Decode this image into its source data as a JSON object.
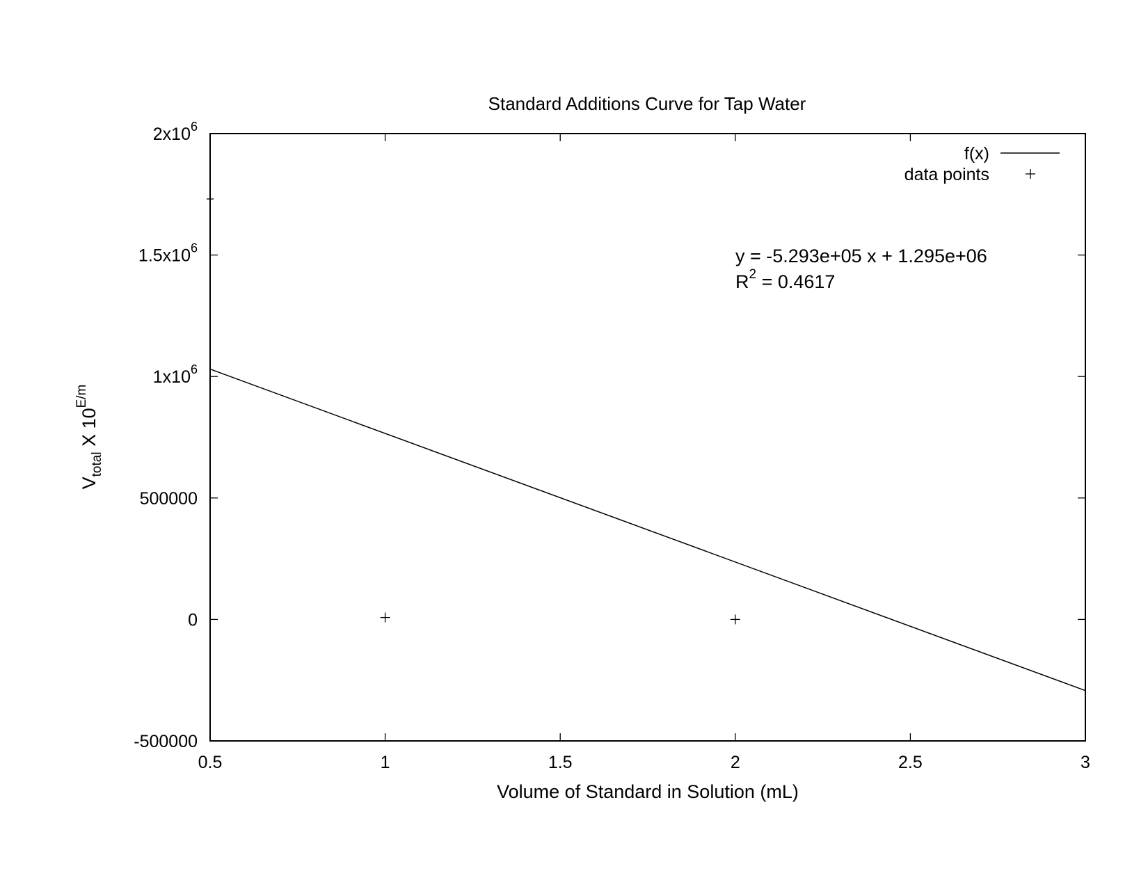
{
  "chart_data": {
    "type": "scatter",
    "title": "Standard Additions Curve for Tap Water",
    "xlabel": "Volume of Standard in Solution (mL)",
    "ylabel": {
      "base": "V",
      "subscript": "total",
      "middle": " X 10",
      "superscript": "E/m"
    },
    "xlim": [
      0.5,
      3
    ],
    "ylim": [
      -500000,
      2000000
    ],
    "x_ticks": [
      0.5,
      1,
      1.5,
      2,
      2.5,
      3
    ],
    "x_tick_labels": [
      "0.5",
      "1",
      "1.5",
      "2",
      "2.5",
      "3"
    ],
    "y_ticks": [
      -500000,
      0,
      500000,
      1000000,
      1500000,
      2000000
    ],
    "y_tick_labels": [
      {
        "text": "-500000",
        "sup": ""
      },
      {
        "text": "0",
        "sup": ""
      },
      {
        "text": "500000",
        "sup": ""
      },
      {
        "text": "1x10",
        "sup": "6"
      },
      {
        "text": "1.5x10",
        "sup": "6"
      },
      {
        "text": "2x10",
        "sup": "6"
      }
    ],
    "grid": false,
    "legend_position": "top-right",
    "series": [
      {
        "name": "f(x)",
        "type": "line",
        "slope": -529300,
        "intercept": 1295000,
        "x": [
          0.5,
          3
        ],
        "y": [
          1030350,
          -292900
        ]
      },
      {
        "name": "data points",
        "type": "scatter",
        "marker": "+",
        "x": [
          1,
          2
        ],
        "y": [
          8000,
          0
        ]
      }
    ],
    "annotations": {
      "equation": "y = -5.293e+05 x + 1.295e+06",
      "r2_prefix": "R",
      "r2_sup": "2",
      "r2_value": " = 0.4617"
    }
  }
}
